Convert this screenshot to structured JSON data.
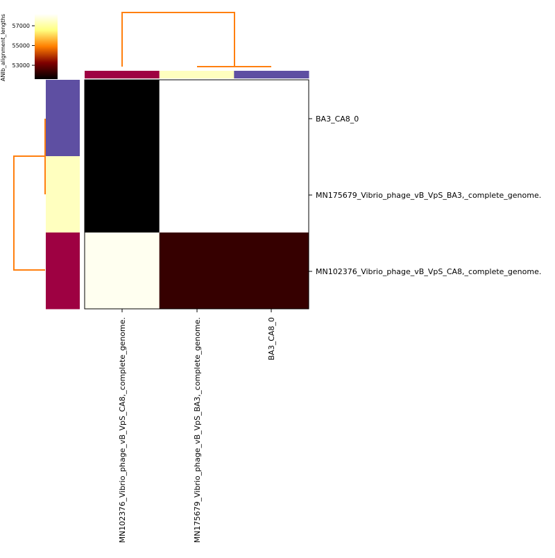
{
  "chart_data": {
    "type": "heatmap",
    "title": "",
    "colorbar": {
      "label": "ANIb_alignment_lengths",
      "ticks": [
        53000,
        55000,
        57000
      ],
      "range": [
        51600,
        58200
      ],
      "colormap": "afmhot"
    },
    "rows": [
      "BA3_CA8_0",
      "MN175679_Vibrio_phage_vB_VpS_BA3,_complete_genome.",
      "MN102376_Vibrio_phage_vB_VpS_CA8,_complete_genome."
    ],
    "columns": [
      "MN102376_Vibrio_phage_vB_VpS_CA8,_complete_genome.",
      "MN175679_Vibrio_phage_vB_VpS_BA3,_complete_genome.",
      "BA3_CA8_0"
    ],
    "matrix": [
      [
        51600,
        58200,
        58200
      ],
      [
        51600,
        58200,
        58200
      ],
      [
        58000,
        52300,
        52300
      ]
    ],
    "row_colors": [
      "#5e4fa2",
      "#ffffbf",
      "#9e0142"
    ],
    "col_colors": [
      "#9e0142",
      "#ffffbf",
      "#5e4fa2"
    ],
    "dendrogram_color": "#ff7f0e",
    "legend": "none"
  },
  "labels": {
    "colorbar_label": "ANIb_alignment_lengths",
    "colorbar_ticks": [
      "57000",
      "55000",
      "53000"
    ],
    "row_labels": [
      "BA3_CA8_0",
      "MN175679_Vibrio_phage_vB_VpS_BA3,_complete_genome.",
      "MN102376_Vibrio_phage_vB_VpS_CA8,_complete_genome."
    ],
    "col_labels": [
      "MN102376_Vibrio_phage_vB_VpS_CA8,_complete_genome.",
      "MN175679_Vibrio_phage_vB_VpS_BA3,_complete_genome.",
      "BA3_CA8_0"
    ]
  }
}
